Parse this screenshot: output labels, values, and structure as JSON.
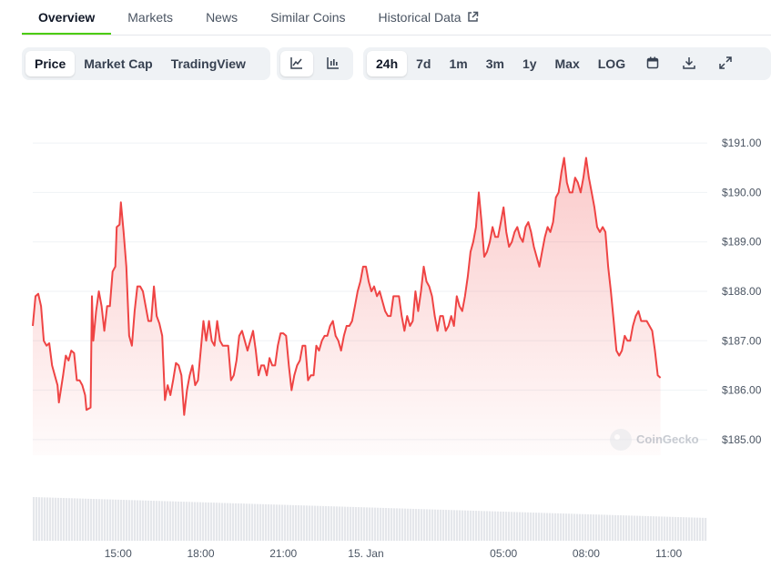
{
  "tabs": [
    {
      "label": "Overview",
      "active": true
    },
    {
      "label": "Markets",
      "active": false
    },
    {
      "label": "News",
      "active": false
    },
    {
      "label": "Similar Coins",
      "active": false
    },
    {
      "label": "Historical Data",
      "active": false,
      "icon": "external-link-icon"
    }
  ],
  "view_toggle": [
    "Price",
    "Market Cap",
    "TradingView"
  ],
  "view_selected": "Price",
  "chart_style_icons": [
    "line-chart-icon",
    "candlestick-icon"
  ],
  "range_buttons": [
    "24h",
    "7d",
    "1m",
    "3m",
    "1y",
    "Max",
    "LOG"
  ],
  "range_selected": "24h",
  "tool_icons": [
    "calendar-icon",
    "download-icon",
    "expand-icon"
  ],
  "watermark": "CoinGecko",
  "colors": {
    "line": "#ef4444",
    "accent": "#4bcc00",
    "volume": "#e5e7eb",
    "grid": "#eff2f5"
  },
  "chart_data": {
    "type": "area",
    "ylim": [
      184.5,
      191.5
    ],
    "y_ticks": [
      "$191.00",
      "$190.00",
      "$189.00",
      "$188.00",
      "$187.00",
      "$186.00",
      "$185.00"
    ],
    "y_tick_values": [
      191,
      190,
      189,
      188,
      187,
      186,
      185
    ],
    "x_ticks": [
      {
        "label": "15:00",
        "t": 15
      },
      {
        "label": "18:00",
        "t": 18
      },
      {
        "label": "21:00",
        "t": 21
      },
      {
        "label": "15. Jan",
        "t": 24
      },
      {
        "label": "05:00",
        "t": 29
      },
      {
        "label": "08:00",
        "t": 32
      },
      {
        "label": "11:00",
        "t": 35
      }
    ],
    "xlim": [
      11.9,
      36.4
    ],
    "grid": true,
    "series": [
      {
        "values": [
          [
            11.9,
            187.3
          ],
          [
            12.0,
            187.9
          ],
          [
            12.1,
            187.95
          ],
          [
            12.2,
            187.7
          ],
          [
            12.3,
            187.0
          ],
          [
            12.4,
            186.9
          ],
          [
            12.5,
            186.95
          ],
          [
            12.6,
            186.5
          ],
          [
            12.7,
            186.3
          ],
          [
            12.8,
            186.1
          ],
          [
            12.85,
            185.75
          ],
          [
            13.0,
            186.3
          ],
          [
            13.1,
            186.7
          ],
          [
            13.2,
            186.6
          ],
          [
            13.3,
            186.8
          ],
          [
            13.4,
            186.75
          ],
          [
            13.5,
            186.2
          ],
          [
            13.6,
            186.2
          ],
          [
            13.7,
            186.1
          ],
          [
            13.8,
            185.9
          ],
          [
            13.85,
            185.6
          ],
          [
            14.0,
            185.65
          ],
          [
            14.05,
            187.9
          ],
          [
            14.1,
            187.0
          ],
          [
            14.2,
            187.6
          ],
          [
            14.3,
            188.0
          ],
          [
            14.4,
            187.7
          ],
          [
            14.5,
            187.2
          ],
          [
            14.6,
            187.7
          ],
          [
            14.7,
            187.7
          ],
          [
            14.8,
            188.4
          ],
          [
            14.9,
            188.5
          ],
          [
            14.95,
            189.3
          ],
          [
            15.05,
            189.35
          ],
          [
            15.1,
            189.8
          ],
          [
            15.2,
            189.2
          ],
          [
            15.3,
            188.5
          ],
          [
            15.4,
            187.1
          ],
          [
            15.5,
            186.9
          ],
          [
            15.6,
            187.6
          ],
          [
            15.7,
            188.1
          ],
          [
            15.8,
            188.1
          ],
          [
            15.9,
            188.0
          ],
          [
            16.0,
            187.7
          ],
          [
            16.1,
            187.4
          ],
          [
            16.2,
            187.4
          ],
          [
            16.3,
            188.1
          ],
          [
            16.4,
            187.5
          ],
          [
            16.5,
            187.35
          ],
          [
            16.6,
            187.1
          ],
          [
            16.7,
            185.8
          ],
          [
            16.8,
            186.1
          ],
          [
            16.9,
            185.9
          ],
          [
            17.0,
            186.2
          ],
          [
            17.1,
            186.55
          ],
          [
            17.2,
            186.5
          ],
          [
            17.3,
            186.3
          ],
          [
            17.4,
            185.5
          ],
          [
            17.5,
            186.0
          ],
          [
            17.6,
            186.3
          ],
          [
            17.7,
            186.5
          ],
          [
            17.8,
            186.1
          ],
          [
            17.9,
            186.2
          ],
          [
            18.0,
            186.8
          ],
          [
            18.1,
            187.4
          ],
          [
            18.2,
            187.0
          ],
          [
            18.3,
            187.4
          ],
          [
            18.4,
            187.0
          ],
          [
            18.5,
            186.9
          ],
          [
            18.6,
            187.4
          ],
          [
            18.7,
            187.0
          ],
          [
            18.8,
            186.9
          ],
          [
            18.9,
            186.9
          ],
          [
            19.0,
            186.9
          ],
          [
            19.1,
            186.2
          ],
          [
            19.2,
            186.3
          ],
          [
            19.3,
            186.6
          ],
          [
            19.4,
            187.1
          ],
          [
            19.5,
            187.2
          ],
          [
            19.6,
            187.0
          ],
          [
            19.7,
            186.8
          ],
          [
            19.8,
            187.0
          ],
          [
            19.9,
            187.2
          ],
          [
            20.0,
            186.8
          ],
          [
            20.1,
            186.3
          ],
          [
            20.2,
            186.5
          ],
          [
            20.3,
            186.5
          ],
          [
            20.4,
            186.3
          ],
          [
            20.5,
            186.65
          ],
          [
            20.6,
            186.5
          ],
          [
            20.7,
            186.5
          ],
          [
            20.8,
            186.9
          ],
          [
            20.9,
            187.15
          ],
          [
            21.0,
            187.15
          ],
          [
            21.1,
            187.1
          ],
          [
            21.2,
            186.5
          ],
          [
            21.3,
            186.0
          ],
          [
            21.4,
            186.3
          ],
          [
            21.5,
            186.5
          ],
          [
            21.6,
            186.6
          ],
          [
            21.7,
            186.9
          ],
          [
            21.8,
            186.9
          ],
          [
            21.9,
            186.2
          ],
          [
            22.0,
            186.3
          ],
          [
            22.1,
            186.3
          ],
          [
            22.2,
            186.9
          ],
          [
            22.3,
            186.8
          ],
          [
            22.4,
            187.0
          ],
          [
            22.5,
            187.1
          ],
          [
            22.6,
            187.1
          ],
          [
            22.7,
            187.3
          ],
          [
            22.8,
            187.4
          ],
          [
            22.9,
            187.1
          ],
          [
            23.0,
            187.0
          ],
          [
            23.1,
            186.8
          ],
          [
            23.2,
            187.1
          ],
          [
            23.3,
            187.3
          ],
          [
            23.4,
            187.3
          ],
          [
            23.5,
            187.4
          ],
          [
            23.6,
            187.7
          ],
          [
            23.7,
            188.0
          ],
          [
            23.8,
            188.2
          ],
          [
            23.9,
            188.5
          ],
          [
            24.0,
            188.5
          ],
          [
            24.1,
            188.2
          ],
          [
            24.2,
            188.0
          ],
          [
            24.3,
            188.1
          ],
          [
            24.4,
            187.9
          ],
          [
            24.5,
            188.0
          ],
          [
            24.6,
            187.8
          ],
          [
            24.7,
            187.6
          ],
          [
            24.8,
            187.5
          ],
          [
            24.9,
            187.5
          ],
          [
            25.0,
            187.9
          ],
          [
            25.1,
            187.9
          ],
          [
            25.2,
            187.9
          ],
          [
            25.3,
            187.5
          ],
          [
            25.4,
            187.2
          ],
          [
            25.5,
            187.5
          ],
          [
            25.6,
            187.3
          ],
          [
            25.7,
            187.4
          ],
          [
            25.8,
            188.0
          ],
          [
            25.9,
            187.6
          ],
          [
            26.0,
            188.0
          ],
          [
            26.1,
            188.5
          ],
          [
            26.2,
            188.2
          ],
          [
            26.3,
            188.1
          ],
          [
            26.4,
            187.9
          ],
          [
            26.5,
            187.5
          ],
          [
            26.6,
            187.2
          ],
          [
            26.7,
            187.5
          ],
          [
            26.8,
            187.5
          ],
          [
            26.9,
            187.2
          ],
          [
            27.0,
            187.3
          ],
          [
            27.1,
            187.5
          ],
          [
            27.2,
            187.3
          ],
          [
            27.3,
            187.9
          ],
          [
            27.4,
            187.7
          ],
          [
            27.5,
            187.6
          ],
          [
            27.6,
            187.9
          ],
          [
            27.7,
            188.3
          ],
          [
            27.8,
            188.8
          ],
          [
            27.9,
            189.0
          ],
          [
            28.0,
            189.3
          ],
          [
            28.1,
            190.0
          ],
          [
            28.2,
            189.4
          ],
          [
            28.3,
            188.7
          ],
          [
            28.4,
            188.8
          ],
          [
            28.5,
            189.0
          ],
          [
            28.6,
            189.3
          ],
          [
            28.7,
            189.1
          ],
          [
            28.8,
            189.1
          ],
          [
            28.9,
            189.4
          ],
          [
            29.0,
            189.7
          ],
          [
            29.1,
            189.2
          ],
          [
            29.2,
            188.9
          ],
          [
            29.3,
            189.0
          ],
          [
            29.4,
            189.2
          ],
          [
            29.5,
            189.3
          ],
          [
            29.6,
            189.1
          ],
          [
            29.7,
            189.0
          ],
          [
            29.8,
            189.3
          ],
          [
            29.9,
            189.4
          ],
          [
            30.0,
            189.2
          ],
          [
            30.1,
            188.9
          ],
          [
            30.2,
            188.7
          ],
          [
            30.3,
            188.5
          ],
          [
            30.4,
            188.8
          ],
          [
            30.5,
            189.1
          ],
          [
            30.6,
            189.3
          ],
          [
            30.7,
            189.2
          ],
          [
            30.8,
            189.4
          ],
          [
            30.9,
            189.9
          ],
          [
            31.0,
            190.0
          ],
          [
            31.1,
            190.4
          ],
          [
            31.2,
            190.7
          ],
          [
            31.3,
            190.2
          ],
          [
            31.4,
            190.0
          ],
          [
            31.5,
            190.0
          ],
          [
            31.6,
            190.3
          ],
          [
            31.7,
            190.2
          ],
          [
            31.8,
            190.0
          ],
          [
            31.9,
            190.3
          ],
          [
            32.0,
            190.7
          ],
          [
            32.1,
            190.3
          ],
          [
            32.2,
            190.0
          ],
          [
            32.3,
            189.7
          ],
          [
            32.4,
            189.3
          ],
          [
            32.5,
            189.2
          ],
          [
            32.6,
            189.3
          ],
          [
            32.7,
            189.2
          ],
          [
            32.8,
            188.5
          ],
          [
            32.9,
            188.0
          ],
          [
            33.0,
            187.4
          ],
          [
            33.1,
            186.8
          ],
          [
            33.2,
            186.7
          ],
          [
            33.3,
            186.8
          ],
          [
            33.4,
            187.1
          ],
          [
            33.5,
            187.0
          ],
          [
            33.6,
            187.0
          ],
          [
            33.7,
            187.3
          ],
          [
            33.8,
            187.5
          ],
          [
            33.9,
            187.6
          ],
          [
            34.0,
            187.4
          ],
          [
            34.1,
            187.4
          ],
          [
            34.2,
            187.4
          ],
          [
            34.3,
            187.3
          ],
          [
            34.4,
            187.2
          ],
          [
            34.5,
            186.8
          ],
          [
            34.6,
            186.3
          ],
          [
            34.7,
            186.25
          ]
        ]
      }
    ]
  }
}
